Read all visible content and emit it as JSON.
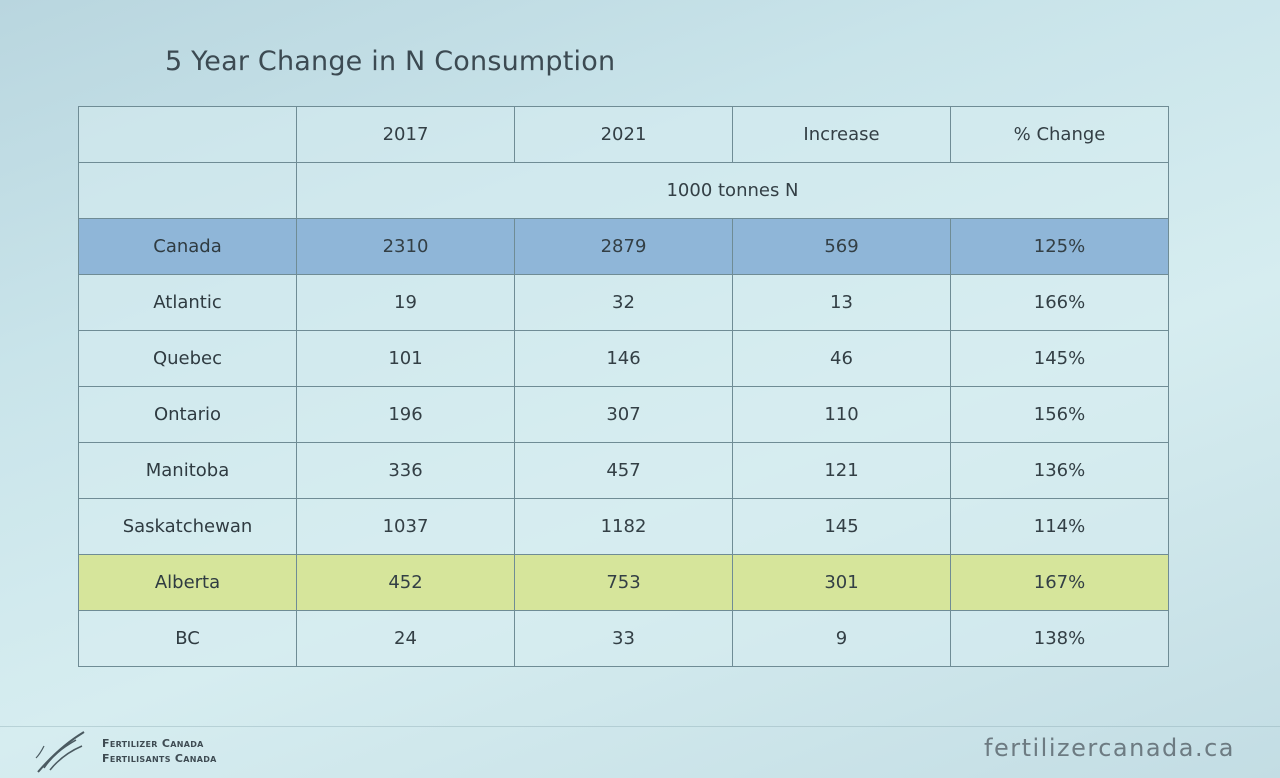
{
  "title": "5 Year Change in N Consumption",
  "table": {
    "headers": [
      "",
      "2017",
      "2021",
      "Increase",
      "% Change"
    ],
    "unit_label": "1000 tonnes N",
    "rows": [
      {
        "region": "Canada",
        "y2017": "2310",
        "y2021": "2879",
        "increase": "569",
        "pct": "125%"
      },
      {
        "region": "Atlantic",
        "y2017": "19",
        "y2021": "32",
        "increase": "13",
        "pct": "166%"
      },
      {
        "region": "Quebec",
        "y2017": "101",
        "y2021": "146",
        "increase": "46",
        "pct": "145%"
      },
      {
        "region": "Ontario",
        "y2017": "196",
        "y2021": "307",
        "increase": "110",
        "pct": "156%"
      },
      {
        "region": "Manitoba",
        "y2017": "336",
        "y2021": "457",
        "increase": "121",
        "pct": "136%"
      },
      {
        "region": "Saskatchewan",
        "y2017": "1037",
        "y2021": "1182",
        "increase": "145",
        "pct": "114%"
      },
      {
        "region": "Alberta",
        "y2017": "452",
        "y2021": "753",
        "increase": "301",
        "pct": "167%"
      },
      {
        "region": "BC",
        "y2017": "24",
        "y2021": "33",
        "increase": "9",
        "pct": "138%"
      }
    ],
    "highlight_colors": {
      "Canada": "#8fb6d8",
      "Alberta": "#d6e59b"
    }
  },
  "footer": {
    "logo_line1": "Fertilizer Canada",
    "logo_line2": "Fertilisants Canada",
    "website": "fertilizercanada.ca"
  }
}
